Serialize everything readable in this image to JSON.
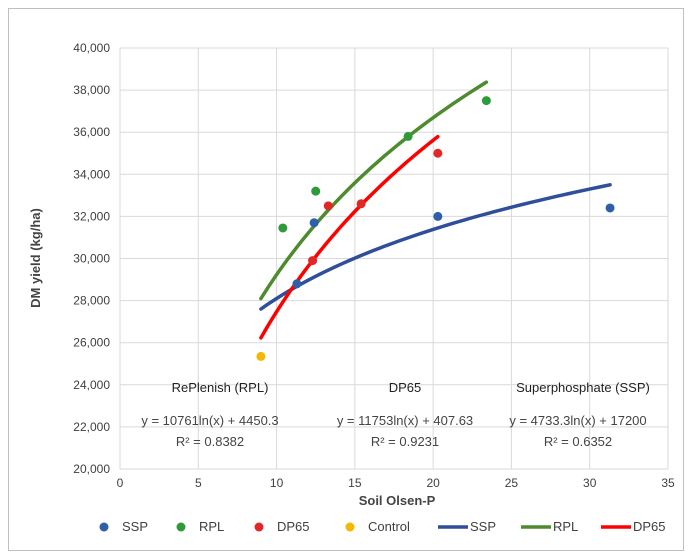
{
  "chart_data": {
    "type": "scatter",
    "title": "",
    "xlabel": "Soil Olsen-P",
    "ylabel": "DM yield  (kg/ha)",
    "xlim": [
      0,
      35
    ],
    "ylim": [
      20000,
      40000
    ],
    "x_ticks": [
      0,
      5,
      10,
      15,
      20,
      25,
      30,
      35
    ],
    "y_ticks": [
      20000,
      22000,
      24000,
      26000,
      28000,
      30000,
      32000,
      34000,
      36000,
      38000,
      40000
    ],
    "x_tick_labels": [
      "0",
      "5",
      "10",
      "15",
      "20",
      "25",
      "30",
      "35"
    ],
    "y_tick_labels": [
      "20,000",
      "22,000",
      "24,000",
      "26,000",
      "28,000",
      "30,000",
      "32,000",
      "34,000",
      "36,000",
      "38,000",
      "40,000"
    ],
    "grid": true,
    "legend_position": "bottom",
    "series": [
      {
        "name": "SSP",
        "kind": "points",
        "color": "#2e5fa8",
        "points": [
          [
            11.3,
            28800
          ],
          [
            12.4,
            31700
          ],
          [
            20.3,
            32000
          ],
          [
            31.3,
            32400
          ]
        ]
      },
      {
        "name": "RPL",
        "kind": "points",
        "color": "#2f9a3a",
        "points": [
          [
            10.4,
            31450
          ],
          [
            12.5,
            33200
          ],
          [
            18.4,
            35800
          ],
          [
            23.4,
            37500
          ]
        ]
      },
      {
        "name": "DP65",
        "kind": "points",
        "color": "#e32626",
        "points": [
          [
            12.3,
            29900
          ],
          [
            13.3,
            32500
          ],
          [
            15.4,
            32600
          ],
          [
            20.3,
            35000
          ]
        ]
      },
      {
        "name": "Control",
        "kind": "points",
        "color": "#f5b800",
        "points": [
          [
            9.0,
            25350
          ]
        ]
      },
      {
        "name": "SSP",
        "kind": "trendline",
        "color": "#2f4f9a",
        "a": 4733.3,
        "b": 17200,
        "x_range": [
          9.0,
          31.3
        ]
      },
      {
        "name": "RPL",
        "kind": "trendline",
        "color": "#4e8a2e",
        "a": 10761,
        "b": 4450.3,
        "x_range": [
          9.0,
          23.4
        ]
      },
      {
        "name": "DP65",
        "kind": "trendline",
        "color": "#ff0000",
        "a": 11753,
        "b": 407.63,
        "x_range": [
          9.0,
          20.3
        ]
      }
    ],
    "annotations": [
      {
        "label": "RePlenish (RPL)",
        "equation": "y = 10761ln(x) + 4450.3",
        "r2": "R² = 0.8382"
      },
      {
        "label": "DP65",
        "equation": "y = 11753ln(x) + 407.63",
        "r2": "R² = 0.9231"
      },
      {
        "label": "Superphosphate (SSP)",
        "equation": "y = 4733.3ln(x) + 17200",
        "r2": "R² = 0.6352"
      }
    ]
  }
}
